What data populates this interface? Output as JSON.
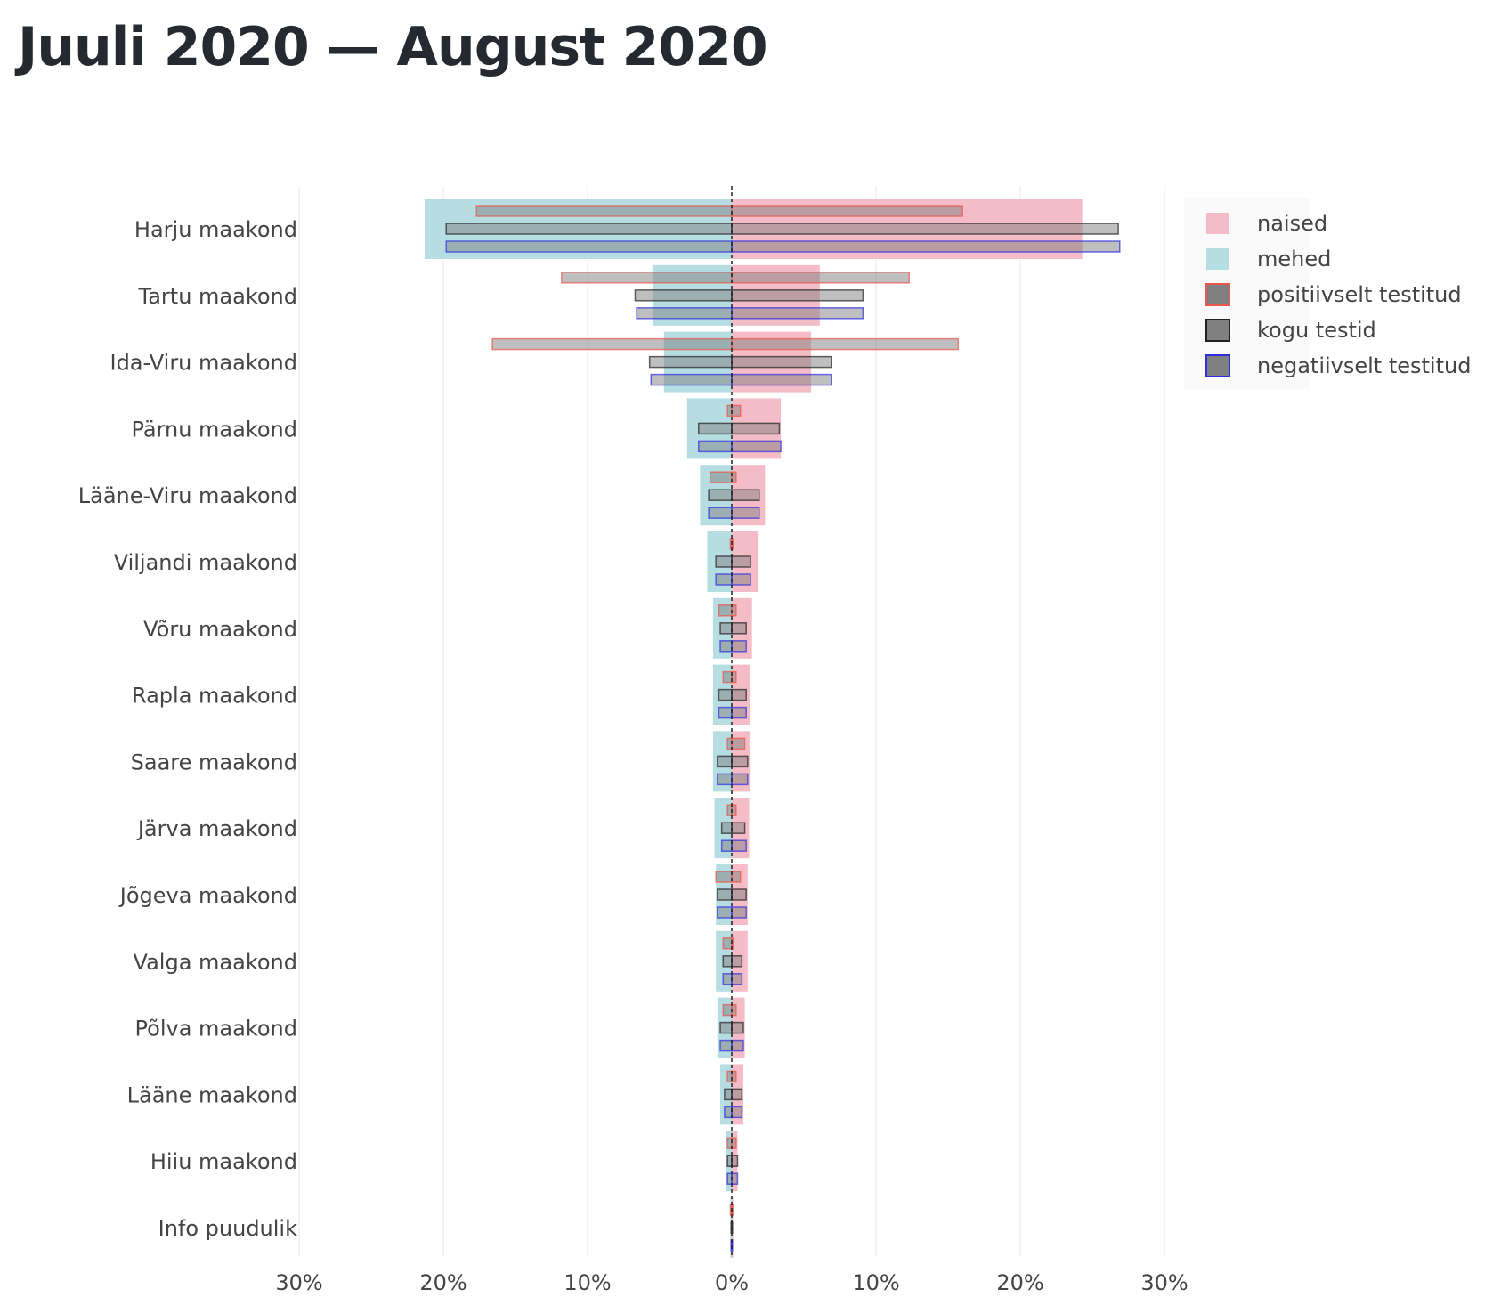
{
  "page": {
    "title": "Juuli 2020 — August 2020"
  },
  "chart_data": {
    "type": "bar",
    "orientation": "horizontal-butterfly",
    "title": "Juuli 2020 — August 2020",
    "categories": [
      "Harju maakond",
      "Tartu maakond",
      "Ida-Viru maakond",
      "Pärnu maakond",
      "Lääne-Viru maakond",
      "Viljandi maakond",
      "Võru maakond",
      "Rapla maakond",
      "Saare maakond",
      "Järva maakond",
      "Jõgeva maakond",
      "Valga maakond",
      "Põlva maakond",
      "Lääne maakond",
      "Hiiu maakond",
      "Info puudulik"
    ],
    "x_ticks": [
      -30,
      -20,
      -10,
      0,
      10,
      20,
      30
    ],
    "x_tick_labels": [
      "30%",
      "20%",
      "10%",
      "0%",
      "10%",
      "20%",
      "30%"
    ],
    "xlim": [
      -30,
      30
    ],
    "grid": true,
    "legend_position": "top-right",
    "legend": [
      "naised",
      "mehed",
      "positiivselt testitud",
      "kogu testid",
      "negatiivselt testitud"
    ],
    "colors": {
      "naised": "#f4bcc7",
      "mehed": "#b6dde2",
      "positiivselt_testitud": "#e9574a",
      "kogu_testid": "#222222",
      "negatiivselt_testitud": "#2f2fe0",
      "inner_fill": "#808080"
    },
    "series": [
      {
        "name": "naised",
        "side": "right",
        "values": [
          24.3,
          6.1,
          5.5,
          3.4,
          2.3,
          1.8,
          1.4,
          1.3,
          1.3,
          1.2,
          1.1,
          1.1,
          0.9,
          0.8,
          0.4,
          0.1
        ]
      },
      {
        "name": "mehed",
        "side": "left",
        "values": [
          21.3,
          5.5,
          4.7,
          3.1,
          2.2,
          1.7,
          1.3,
          1.3,
          1.3,
          1.2,
          1.1,
          1.1,
          1.0,
          0.8,
          0.4,
          0.1
        ]
      },
      {
        "name": "positiivselt testitud",
        "female": [
          16.0,
          12.3,
          15.7,
          0.6,
          0.3,
          0.1,
          0.3,
          0.3,
          0.9,
          0.3,
          0.6,
          0.1,
          0.3,
          0.3,
          0.3,
          0.1
        ],
        "male": [
          17.7,
          11.8,
          16.6,
          0.3,
          1.5,
          0.1,
          0.9,
          0.6,
          0.3,
          0.3,
          1.1,
          0.6,
          0.6,
          0.3,
          0.3,
          0.1
        ]
      },
      {
        "name": "kogu testid",
        "female": [
          26.8,
          9.1,
          6.9,
          3.3,
          1.9,
          1.3,
          1.0,
          1.0,
          1.1,
          0.9,
          1.0,
          0.7,
          0.8,
          0.7,
          0.4,
          0.05
        ],
        "male": [
          19.8,
          6.7,
          5.7,
          2.3,
          1.6,
          1.1,
          0.8,
          0.9,
          1.0,
          0.7,
          1.0,
          0.6,
          0.8,
          0.5,
          0.3,
          0.05
        ]
      },
      {
        "name": "negatiivselt testitud",
        "female": [
          26.9,
          9.1,
          6.9,
          3.4,
          1.9,
          1.3,
          1.0,
          1.0,
          1.1,
          1.0,
          1.0,
          0.7,
          0.8,
          0.7,
          0.4,
          0.05
        ],
        "male": [
          19.8,
          6.6,
          5.6,
          2.3,
          1.6,
          1.1,
          0.8,
          0.9,
          1.0,
          0.7,
          1.0,
          0.6,
          0.8,
          0.5,
          0.3,
          0.05
        ]
      }
    ]
  }
}
